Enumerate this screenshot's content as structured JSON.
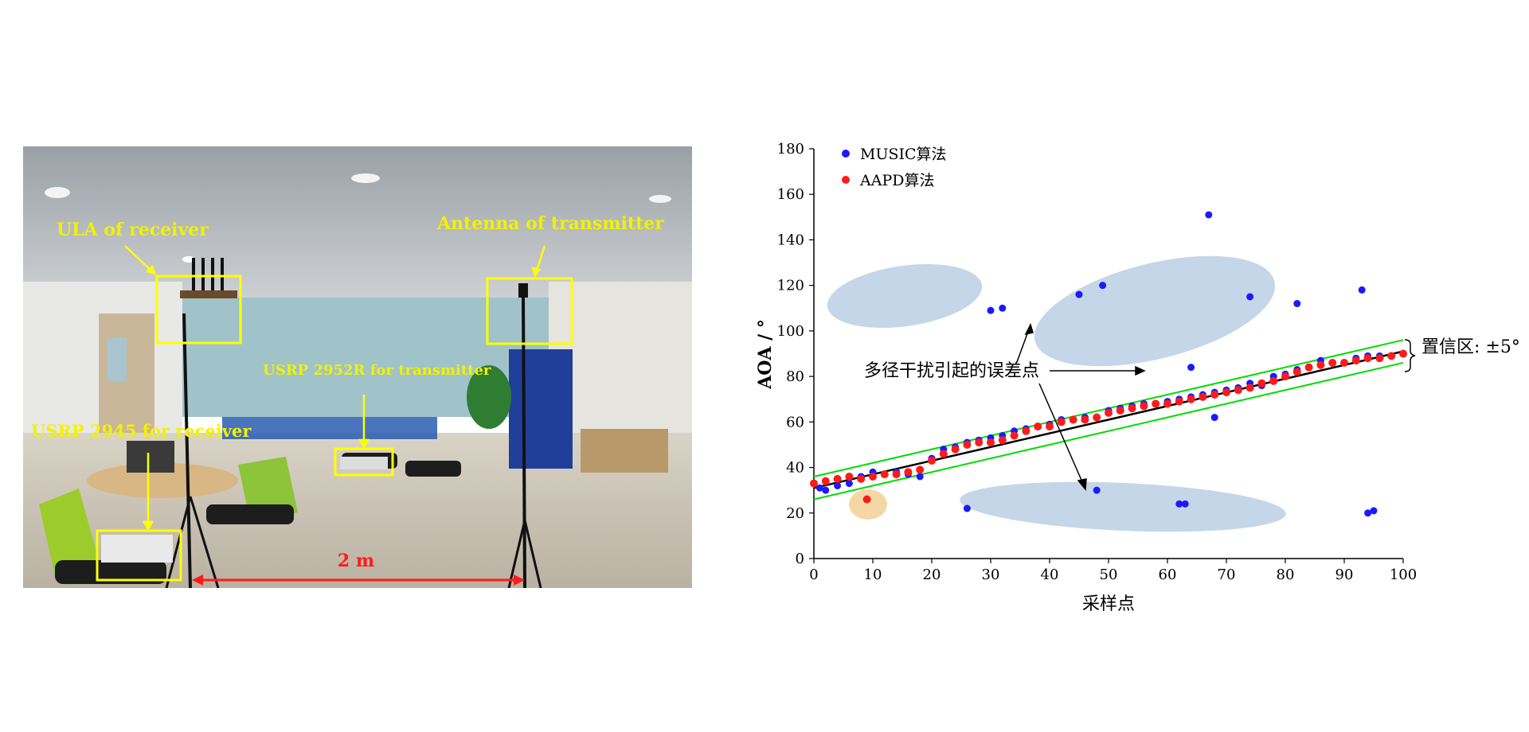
{
  "photo": {
    "labels": {
      "ula": "ULA of receiver",
      "antenna": "Antenna of transmitter",
      "usrp_tx": "USRP 2952R for transmitter",
      "usrp_rx": "USRP 2945 for receiver",
      "distance": "2 m"
    },
    "colors": {
      "label": "#f2f200",
      "box": "#ffff00",
      "arrow_distance": "#ff1a1a"
    }
  },
  "chart_data": {
    "type": "scatter",
    "title": "",
    "xlabel": "采样点",
    "ylabel": "AOA / °",
    "xlim": [
      0,
      100
    ],
    "ylim": [
      0,
      180
    ],
    "xticks": [
      0,
      10,
      20,
      30,
      40,
      50,
      60,
      70,
      80,
      90,
      100
    ],
    "yticks": [
      0,
      20,
      40,
      60,
      80,
      100,
      120,
      140,
      160,
      180
    ],
    "legend": {
      "position": "top-left"
    },
    "grid": false,
    "series": [
      {
        "name": "MUSIC算法",
        "color": "#1a1aff",
        "x": [
          1,
          2,
          4,
          6,
          8,
          10,
          12,
          14,
          16,
          18,
          20,
          22,
          24,
          26,
          28,
          30,
          32,
          34,
          36,
          38,
          40,
          42,
          44,
          46,
          48,
          50,
          52,
          54,
          56,
          58,
          60,
          62,
          64,
          66,
          68,
          70,
          72,
          74,
          76,
          78,
          80,
          82,
          84,
          86,
          88,
          90,
          92,
          94,
          96,
          98,
          100,
          30,
          32,
          45,
          49,
          74,
          82,
          93,
          67,
          64,
          68,
          26,
          48,
          62,
          63,
          94,
          95
        ],
        "y": [
          31,
          30,
          32,
          33,
          36,
          38,
          37,
          38,
          37,
          36,
          44,
          48,
          49,
          51,
          52,
          53,
          54,
          56,
          57,
          58,
          59,
          61,
          61,
          62,
          62,
          65,
          66,
          67,
          68,
          68,
          69,
          70,
          71,
          72,
          73,
          74,
          75,
          77,
          76,
          80,
          81,
          83,
          84,
          87,
          86,
          86,
          88,
          89,
          89,
          89,
          90,
          109,
          110,
          116,
          120,
          115,
          112,
          118,
          151,
          84,
          62,
          22,
          30,
          24,
          24,
          20,
          21
        ]
      },
      {
        "name": "AAPD算法",
        "color": "#ff1a1a",
        "x": [
          0,
          2,
          4,
          6,
          8,
          10,
          12,
          14,
          16,
          18,
          20,
          22,
          24,
          26,
          28,
          30,
          32,
          34,
          36,
          38,
          40,
          42,
          44,
          46,
          48,
          50,
          52,
          54,
          56,
          58,
          60,
          62,
          64,
          66,
          68,
          70,
          72,
          74,
          76,
          78,
          80,
          82,
          84,
          86,
          88,
          90,
          92,
          94,
          96,
          98,
          100,
          9
        ],
        "y": [
          33,
          34,
          35,
          36,
          35,
          36,
          37,
          37,
          38,
          39,
          43,
          46,
          48,
          50,
          51,
          51,
          52,
          54,
          56,
          58,
          58,
          60,
          61,
          61,
          62,
          64,
          65,
          66,
          67,
          68,
          68,
          69,
          70,
          71,
          72,
          73,
          74,
          75,
          77,
          78,
          80,
          82,
          84,
          85,
          86,
          86,
          87,
          88,
          88,
          89,
          90,
          26
        ]
      }
    ],
    "lines": [
      {
        "kind": "fit",
        "color": "#000000",
        "x": [
          0,
          100
        ],
        "y": [
          31,
          91
        ]
      },
      {
        "kind": "confidence-upper",
        "color": "#00dd00",
        "x": [
          0,
          100
        ],
        "y": [
          36,
          96
        ]
      },
      {
        "kind": "confidence-lower",
        "color": "#00dd00",
        "x": [
          0,
          100
        ],
        "y": [
          26,
          86
        ]
      }
    ],
    "annotations": {
      "multipath": "多径干扰引起的误差点",
      "confidence": "置信区: ±5°"
    },
    "regions_color": "#c5d6e8",
    "outlier_color": "#f5d7a6"
  }
}
